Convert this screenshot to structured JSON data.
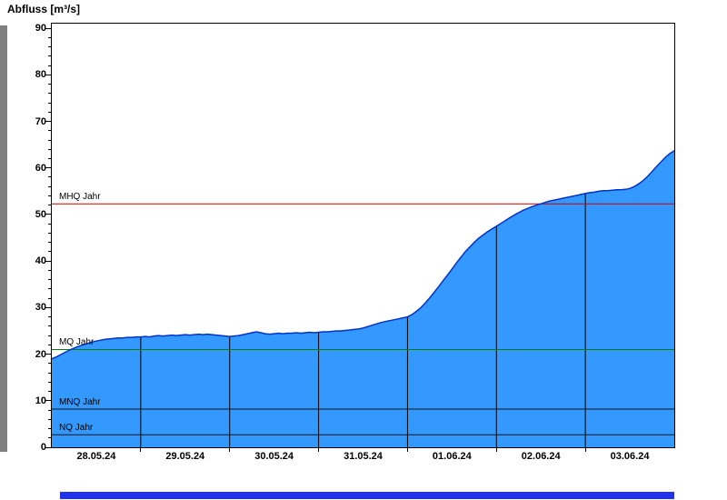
{
  "chart_data": {
    "type": "area",
    "title": "Abfluss [m³/s]",
    "xlabel": "",
    "ylabel": "Abfluss [m³/s]",
    "x_axis": {
      "tick_labels": [
        "28.05.24",
        "29.05.24",
        "30.05.24",
        "31.05.24",
        "01.06.24",
        "02.06.24",
        "03.06.24"
      ],
      "range_days": [
        0,
        7
      ],
      "day_boundaries": [
        1,
        2,
        3,
        4,
        5,
        6
      ],
      "gridlines_vertical_over_fill": true
    },
    "y_axis": {
      "min": 0,
      "max": 91,
      "major_tick_step": 10,
      "minor_tick_step": 2,
      "tick_labels": [
        "0",
        "10",
        "20",
        "30",
        "40",
        "50",
        "60",
        "70",
        "80",
        "90"
      ]
    },
    "reference_lines": [
      {
        "label": "MHQ Jahr",
        "value": 52.3,
        "color": "#cc0000"
      },
      {
        "label": "MQ Jahr",
        "value": 21.0,
        "color": "#008000"
      },
      {
        "label": "MNQ Jahr",
        "value": 8.2,
        "color": "#141414"
      },
      {
        "label": "NQ Jahr",
        "value": 2.7,
        "color": "#141414"
      }
    ],
    "series": [
      {
        "name": "Abfluss",
        "unit": "m³/s",
        "line_color": "#0033cc",
        "fill_color": "#3399ff",
        "points": [
          [
            0,
            19.0
          ],
          [
            0.05,
            19.4
          ],
          [
            0.1,
            19.9
          ],
          [
            0.15,
            20.4
          ],
          [
            0.2,
            20.9
          ],
          [
            0.25,
            21.3
          ],
          [
            0.3,
            21.7
          ],
          [
            0.35,
            22.0
          ],
          [
            0.4,
            22.3
          ],
          [
            0.45,
            22.6
          ],
          [
            0.5,
            22.8
          ],
          [
            0.55,
            23.0
          ],
          [
            0.6,
            23.2
          ],
          [
            0.65,
            23.3
          ],
          [
            0.7,
            23.4
          ],
          [
            0.75,
            23.5
          ],
          [
            0.8,
            23.5
          ],
          [
            0.85,
            23.6
          ],
          [
            0.9,
            23.6
          ],
          [
            0.95,
            23.7
          ],
          [
            1,
            23.7
          ],
          [
            1.05,
            23.8
          ],
          [
            1.1,
            23.7
          ],
          [
            1.15,
            23.9
          ],
          [
            1.2,
            24.0
          ],
          [
            1.25,
            23.9
          ],
          [
            1.3,
            24.0
          ],
          [
            1.35,
            24.1
          ],
          [
            1.4,
            24.0
          ],
          [
            1.45,
            24.1
          ],
          [
            1.5,
            24.2
          ],
          [
            1.55,
            24.1
          ],
          [
            1.6,
            24.2
          ],
          [
            1.65,
            24.3
          ],
          [
            1.7,
            24.2
          ],
          [
            1.75,
            24.3
          ],
          [
            1.8,
            24.2
          ],
          [
            1.85,
            24.1
          ],
          [
            1.9,
            24.0
          ],
          [
            1.95,
            23.9
          ],
          [
            2,
            23.8
          ],
          [
            2.05,
            23.9
          ],
          [
            2.1,
            24.0
          ],
          [
            2.15,
            24.2
          ],
          [
            2.2,
            24.4
          ],
          [
            2.25,
            24.6
          ],
          [
            2.3,
            24.8
          ],
          [
            2.35,
            24.6
          ],
          [
            2.4,
            24.4
          ],
          [
            2.45,
            24.3
          ],
          [
            2.5,
            24.4
          ],
          [
            2.55,
            24.5
          ],
          [
            2.6,
            24.4
          ],
          [
            2.65,
            24.5
          ],
          [
            2.7,
            24.5
          ],
          [
            2.75,
            24.6
          ],
          [
            2.8,
            24.5
          ],
          [
            2.85,
            24.6
          ],
          [
            2.9,
            24.7
          ],
          [
            2.95,
            24.6
          ],
          [
            3,
            24.7
          ],
          [
            3.05,
            24.8
          ],
          [
            3.1,
            24.8
          ],
          [
            3.15,
            24.9
          ],
          [
            3.2,
            25.0
          ],
          [
            3.25,
            25.0
          ],
          [
            3.3,
            25.1
          ],
          [
            3.35,
            25.2
          ],
          [
            3.4,
            25.3
          ],
          [
            3.45,
            25.4
          ],
          [
            3.5,
            25.6
          ],
          [
            3.55,
            25.9
          ],
          [
            3.6,
            26.2
          ],
          [
            3.65,
            26.5
          ],
          [
            3.7,
            26.8
          ],
          [
            3.75,
            27.0
          ],
          [
            3.8,
            27.2
          ],
          [
            3.85,
            27.4
          ],
          [
            3.9,
            27.6
          ],
          [
            3.95,
            27.8
          ],
          [
            4,
            28.0
          ],
          [
            4.05,
            28.5
          ],
          [
            4.1,
            29.2
          ],
          [
            4.15,
            30.0
          ],
          [
            4.2,
            31.0
          ],
          [
            4.25,
            32.1
          ],
          [
            4.3,
            33.3
          ],
          [
            4.35,
            34.5
          ],
          [
            4.4,
            35.8
          ],
          [
            4.45,
            37.0
          ],
          [
            4.5,
            38.3
          ],
          [
            4.55,
            39.6
          ],
          [
            4.6,
            40.8
          ],
          [
            4.65,
            42.0
          ],
          [
            4.7,
            43.0
          ],
          [
            4.75,
            44.0
          ],
          [
            4.8,
            44.9
          ],
          [
            4.85,
            45.6
          ],
          [
            4.9,
            46.3
          ],
          [
            4.95,
            46.9
          ],
          [
            5,
            47.5
          ],
          [
            5.05,
            48.1
          ],
          [
            5.1,
            48.7
          ],
          [
            5.15,
            49.3
          ],
          [
            5.2,
            49.9
          ],
          [
            5.25,
            50.4
          ],
          [
            5.3,
            50.9
          ],
          [
            5.35,
            51.3
          ],
          [
            5.4,
            51.7
          ],
          [
            5.45,
            52.0
          ],
          [
            5.5,
            52.3
          ],
          [
            5.55,
            52.6
          ],
          [
            5.6,
            52.9
          ],
          [
            5.65,
            53.1
          ],
          [
            5.7,
            53.3
          ],
          [
            5.75,
            53.5
          ],
          [
            5.8,
            53.7
          ],
          [
            5.85,
            53.9
          ],
          [
            5.9,
            54.1
          ],
          [
            5.95,
            54.3
          ],
          [
            6,
            54.5
          ],
          [
            6.05,
            54.7
          ],
          [
            6.1,
            54.8
          ],
          [
            6.15,
            55.0
          ],
          [
            6.2,
            55.1
          ],
          [
            6.25,
            55.1
          ],
          [
            6.3,
            55.2
          ],
          [
            6.35,
            55.3
          ],
          [
            6.4,
            55.3
          ],
          [
            6.45,
            55.4
          ],
          [
            6.5,
            55.6
          ],
          [
            6.55,
            56.0
          ],
          [
            6.6,
            56.6
          ],
          [
            6.65,
            57.3
          ],
          [
            6.7,
            58.2
          ],
          [
            6.75,
            59.2
          ],
          [
            6.8,
            60.3
          ],
          [
            6.85,
            61.3
          ],
          [
            6.9,
            62.3
          ],
          [
            6.95,
            63.1
          ],
          [
            7,
            63.7
          ]
        ]
      }
    ]
  },
  "scrollbars": {
    "vertical_color": "#808080",
    "horizontal_color": "#2233ee"
  }
}
